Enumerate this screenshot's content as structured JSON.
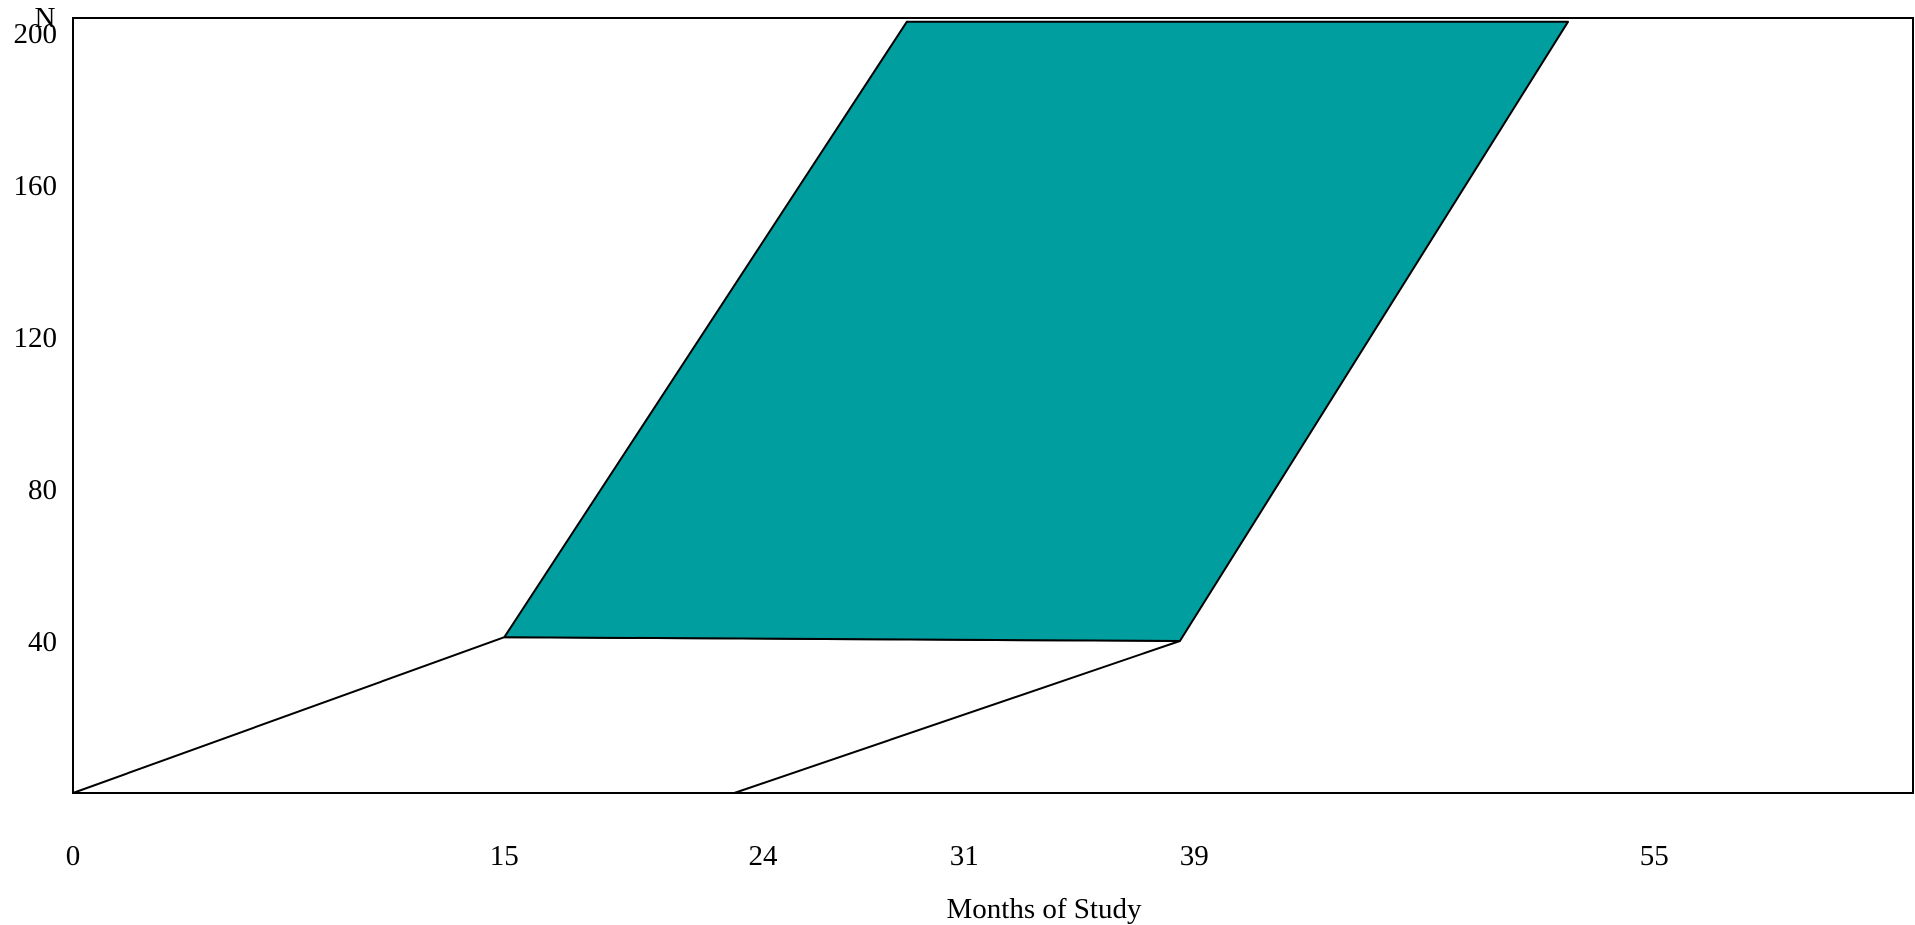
{
  "chart_data": {
    "type": "area",
    "title": "",
    "xlabel": "Months of Study",
    "ylabel": "N",
    "x_ticks": [
      0,
      15,
      24,
      31,
      39,
      55
    ],
    "y_ticks": [
      40,
      80,
      120,
      160,
      200
    ],
    "xlim": [
      0,
      64
    ],
    "ylim": [
      0,
      204
    ],
    "grid": false,
    "legend": "none",
    "colors": {
      "fill": "#009e9f",
      "stroke": "#000000",
      "background": "#ffffff"
    },
    "regions": [
      {
        "id": "lower-band",
        "filled": false,
        "points": [
          [
            0,
            0
          ],
          [
            15,
            41
          ],
          [
            38.5,
            40
          ],
          [
            23,
            0
          ]
        ]
      },
      {
        "id": "upper-band",
        "filled": true,
        "points": [
          [
            15,
            41
          ],
          [
            29,
            203
          ],
          [
            52,
            203
          ],
          [
            38.5,
            40
          ]
        ]
      }
    ]
  }
}
